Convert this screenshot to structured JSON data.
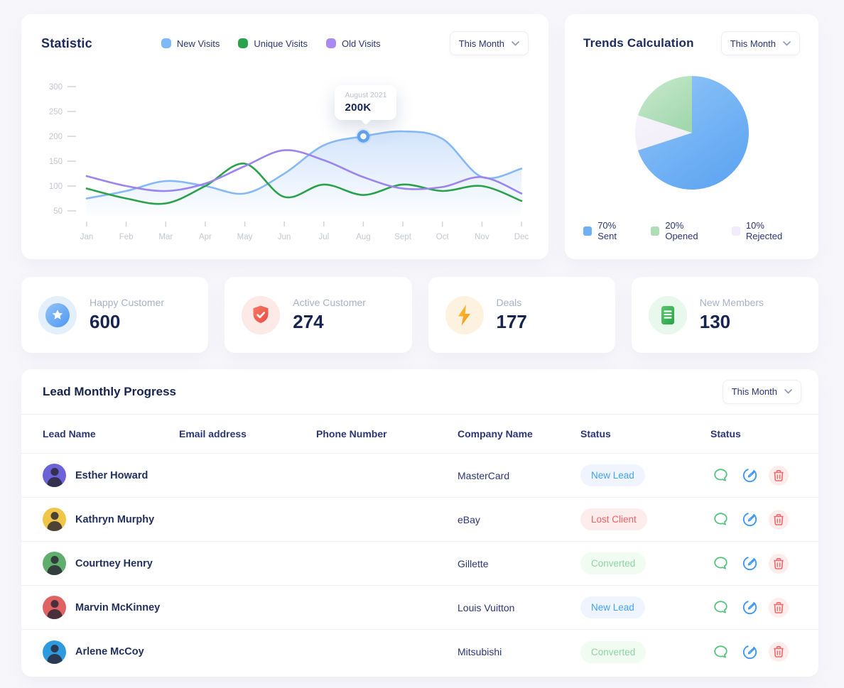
{
  "statistic": {
    "title": "Statistic",
    "period": "This Month",
    "legend": [
      {
        "label": "New Visits",
        "color": "#7CB9F6"
      },
      {
        "label": "Unique Visits",
        "color": "#2AA14B"
      },
      {
        "label": "Old Visits",
        "color": "#A78BF0"
      }
    ],
    "tooltip": {
      "title": "August 2021",
      "value": "200K"
    }
  },
  "trends": {
    "title": "Trends Calculation",
    "period": "This Month",
    "legend": [
      {
        "label": "70% Sent",
        "color": "#6FB0F4"
      },
      {
        "label": "20% Opened",
        "color": "#AFDDB8"
      },
      {
        "label": "10% Rejected",
        "color": "#F0ECF9"
      }
    ]
  },
  "chart_data": [
    {
      "type": "line",
      "title": "Statistic",
      "x": [
        "Jan",
        "Feb",
        "Mar",
        "Apr",
        "May",
        "Jun",
        "Jul",
        "Aug",
        "Sept",
        "Oct",
        "Nov",
        "Dec"
      ],
      "yticks": [
        50,
        100,
        150,
        200,
        250,
        300
      ],
      "ylim": [
        50,
        300
      ],
      "unit": "K",
      "grid": false,
      "legend_position": "top",
      "series": [
        {
          "name": "New Visits",
          "color": "#85B9F5",
          "area": true,
          "values": [
            75,
            90,
            110,
            100,
            85,
            125,
            182,
            200,
            210,
            195,
            118,
            135
          ]
        },
        {
          "name": "Unique Visits",
          "color": "#2AA14B",
          "values": [
            95,
            75,
            65,
            100,
            145,
            78,
            103,
            82,
            103,
            90,
            100,
            70
          ]
        },
        {
          "name": "Old Visits",
          "color": "#9B84EE",
          "values": [
            120,
            100,
            90,
            105,
            140,
            172,
            152,
            118,
            95,
            98,
            118,
            85
          ]
        }
      ],
      "highlight": {
        "series": "New Visits",
        "x": "Aug",
        "x_index": 7,
        "label": "200K",
        "sublabel": "August 2021"
      }
    },
    {
      "type": "pie",
      "title": "Trends Calculation",
      "start_angle_deg": 0,
      "direction": "clockwise",
      "slices": [
        {
          "label": "Sent",
          "pct": 70,
          "gradient": [
            "#93C6F9",
            "#5FA6F1"
          ]
        },
        {
          "label": "Rejected",
          "pct": 10,
          "gradient": [
            "#F6F3FB",
            "#F2EEF9"
          ]
        },
        {
          "label": "Opened",
          "pct": 20,
          "gradient": [
            "#C9EACF",
            "#A3D8AE"
          ]
        }
      ],
      "legend": [
        "70% Sent",
        "20% Opened",
        "10% Rejected"
      ]
    }
  ],
  "stat_cards": [
    {
      "label": "Happy Customer",
      "value": "600",
      "icon": "star-icon",
      "halo": "#e4effc"
    },
    {
      "label": "Active Customer",
      "value": "274",
      "icon": "shield-check-icon",
      "halo": "#fde9e6"
    },
    {
      "label": "Deals",
      "value": "177",
      "icon": "lightning-icon",
      "halo": "#fdf2df"
    },
    {
      "label": "New Members",
      "value": "130",
      "icon": "document-icon",
      "halo": "#e8f8ec"
    }
  ],
  "leads": {
    "title": "Lead Monthly Progress",
    "period": "This Month",
    "columns": [
      "Lead Name",
      "Email address",
      "Phone Number",
      "Company Name",
      "Status",
      "Status"
    ],
    "status_styles": {
      "new": {
        "color": "#3FA3F6",
        "bg": "#F0F4FE"
      },
      "lost": {
        "color": "#F16063",
        "bg": "#FDECEC"
      },
      "converted": {
        "color": "#8FD4A0",
        "bg": "#F0FBF2"
      }
    },
    "row_actions": [
      "chat-icon",
      "edit-icon",
      "trash-icon"
    ],
    "rows": [
      {
        "name": "Esther Howard",
        "email_redacted": true,
        "phone_redacted": true,
        "company": "MasterCard",
        "status": "New Lead",
        "status_type": "new",
        "avatar_color": "#6C63D8"
      },
      {
        "name": "Kathryn Murphy",
        "email_redacted": true,
        "phone_redacted": true,
        "company": "eBay",
        "status": "Lost Client",
        "status_type": "lost",
        "avatar_color": "#F0C64A"
      },
      {
        "name": "Courtney Henry",
        "email_redacted": true,
        "phone_redacted": true,
        "company": "Gillette",
        "status": "Converted",
        "status_type": "converted",
        "avatar_color": "#5FAE6E"
      },
      {
        "name": "Marvin McKinney",
        "email_redacted": true,
        "phone_redacted": true,
        "company": "Louis Vuitton",
        "status": "New Lead",
        "status_type": "new",
        "avatar_color": "#E06363"
      },
      {
        "name": "Arlene McCoy",
        "email_redacted": true,
        "phone_redacted": true,
        "company": "Mitsubishi",
        "status": "Converted",
        "status_type": "converted",
        "avatar_color": "#2E9BDE"
      }
    ]
  }
}
